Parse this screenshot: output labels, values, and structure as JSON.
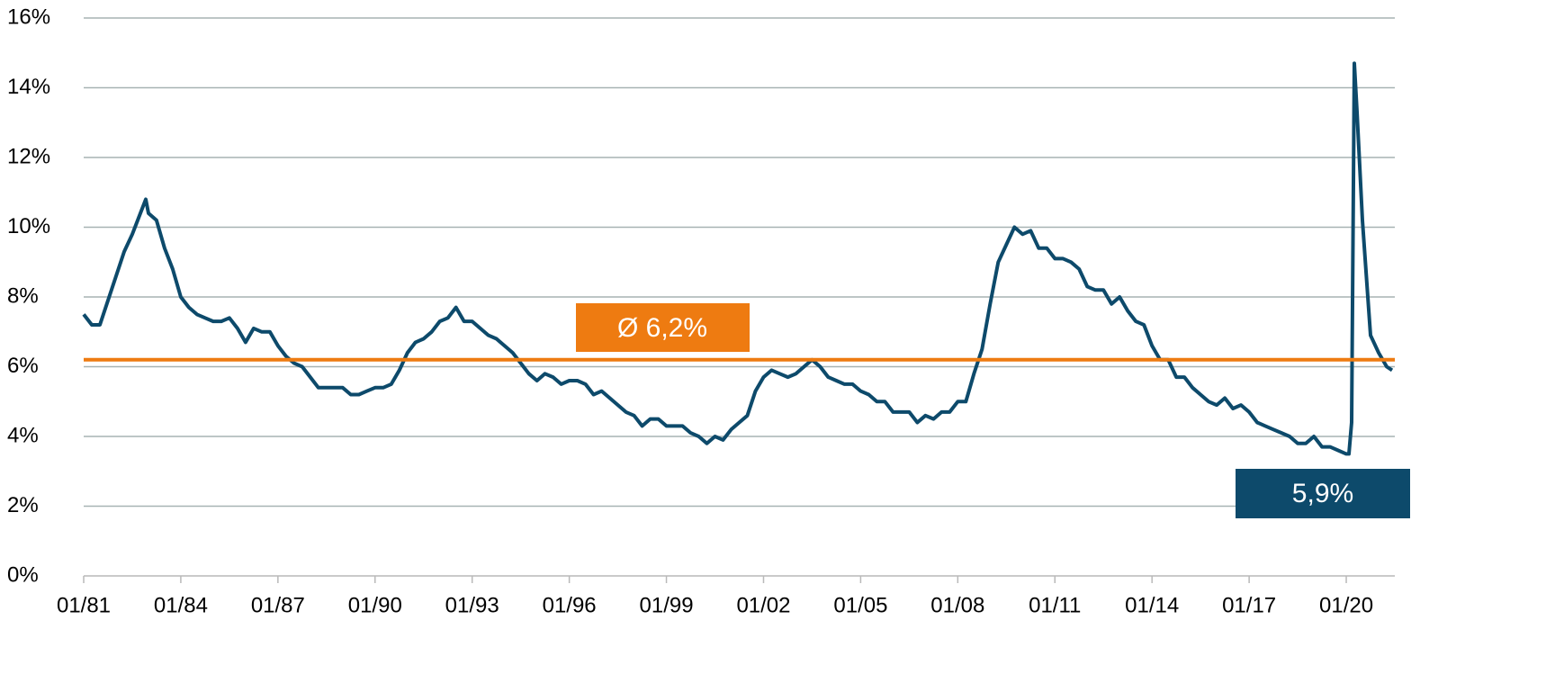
{
  "chart_data": {
    "type": "line",
    "x": [
      "01/81",
      "04/81",
      "07/81",
      "10/81",
      "01/82",
      "04/82",
      "07/82",
      "10/82",
      "12/82",
      "01/83",
      "04/83",
      "07/83",
      "10/83",
      "01/84",
      "04/84",
      "07/84",
      "10/84",
      "01/85",
      "04/85",
      "07/85",
      "10/85",
      "01/86",
      "04/86",
      "07/86",
      "10/86",
      "01/87",
      "04/87",
      "07/87",
      "10/87",
      "01/88",
      "04/88",
      "07/88",
      "10/88",
      "01/89",
      "04/89",
      "07/89",
      "10/89",
      "01/90",
      "04/90",
      "07/90",
      "10/90",
      "01/91",
      "04/91",
      "07/91",
      "10/91",
      "01/92",
      "04/92",
      "07/92",
      "10/92",
      "01/93",
      "04/93",
      "07/93",
      "10/93",
      "01/94",
      "04/94",
      "07/94",
      "10/94",
      "01/95",
      "04/95",
      "07/95",
      "10/95",
      "01/96",
      "04/96",
      "07/96",
      "10/96",
      "01/97",
      "04/97",
      "07/97",
      "10/97",
      "01/98",
      "04/98",
      "07/98",
      "10/98",
      "01/99",
      "04/99",
      "07/99",
      "10/99",
      "01/00",
      "04/00",
      "07/00",
      "10/00",
      "01/01",
      "04/01",
      "07/01",
      "10/01",
      "01/02",
      "04/02",
      "07/02",
      "10/02",
      "01/03",
      "04/03",
      "07/03",
      "10/03",
      "01/04",
      "04/04",
      "07/04",
      "10/04",
      "01/05",
      "04/05",
      "07/05",
      "10/05",
      "01/06",
      "04/06",
      "07/06",
      "10/06",
      "01/07",
      "04/07",
      "07/07",
      "10/07",
      "01/08",
      "04/08",
      "07/08",
      "10/08",
      "01/09",
      "04/09",
      "07/09",
      "10/09",
      "01/10",
      "04/10",
      "07/10",
      "10/10",
      "01/11",
      "04/11",
      "07/11",
      "10/11",
      "01/12",
      "04/12",
      "07/12",
      "10/12",
      "01/13",
      "04/13",
      "07/13",
      "10/13",
      "01/14",
      "04/14",
      "07/14",
      "10/14",
      "01/15",
      "04/15",
      "07/15",
      "10/15",
      "01/16",
      "04/16",
      "07/16",
      "10/16",
      "01/17",
      "04/17",
      "07/17",
      "10/17",
      "01/18",
      "04/18",
      "07/18",
      "10/18",
      "01/19",
      "04/19",
      "07/19",
      "10/19",
      "01/20",
      "02/20",
      "03/20",
      "04/20",
      "05/20",
      "07/20",
      "10/20",
      "01/21",
      "04/21",
      "06/21"
    ],
    "values": [
      7.5,
      7.2,
      7.2,
      7.9,
      8.6,
      9.3,
      9.8,
      10.4,
      10.8,
      10.4,
      10.2,
      9.4,
      8.8,
      8.0,
      7.7,
      7.5,
      7.4,
      7.3,
      7.3,
      7.4,
      7.1,
      6.7,
      7.1,
      7.0,
      7.0,
      6.6,
      6.3,
      6.1,
      6.0,
      5.7,
      5.4,
      5.4,
      5.4,
      5.4,
      5.2,
      5.2,
      5.3,
      5.4,
      5.4,
      5.5,
      5.9,
      6.4,
      6.7,
      6.8,
      7.0,
      7.3,
      7.4,
      7.7,
      7.3,
      7.3,
      7.1,
      6.9,
      6.8,
      6.6,
      6.4,
      6.1,
      5.8,
      5.6,
      5.8,
      5.7,
      5.5,
      5.6,
      5.6,
      5.5,
      5.2,
      5.3,
      5.1,
      4.9,
      4.7,
      4.6,
      4.3,
      4.5,
      4.5,
      4.3,
      4.3,
      4.3,
      4.1,
      4.0,
      3.8,
      4.0,
      3.9,
      4.2,
      4.4,
      4.6,
      5.3,
      5.7,
      5.9,
      5.8,
      5.7,
      5.8,
      6.0,
      6.2,
      6.0,
      5.7,
      5.6,
      5.5,
      5.5,
      5.3,
      5.2,
      5.0,
      5.0,
      4.7,
      4.7,
      4.7,
      4.4,
      4.6,
      4.5,
      4.7,
      4.7,
      5.0,
      5.0,
      5.8,
      6.5,
      7.8,
      9.0,
      9.5,
      10.0,
      9.8,
      9.9,
      9.4,
      9.4,
      9.1,
      9.1,
      9.0,
      8.8,
      8.3,
      8.2,
      8.2,
      7.8,
      8.0,
      7.6,
      7.3,
      7.2,
      6.6,
      6.2,
      6.2,
      5.7,
      5.7,
      5.4,
      5.2,
      5.0,
      4.9,
      5.1,
      4.8,
      4.9,
      4.7,
      4.4,
      4.3,
      4.2,
      4.1,
      4.0,
      3.8,
      3.8,
      4.0,
      3.7,
      3.7,
      3.6,
      3.5,
      3.5,
      4.4,
      14.7,
      13.3,
      10.2,
      6.9,
      6.4,
      6.0,
      5.9
    ],
    "color": "#0d4a6b",
    "xlim": [
      "01/81",
      "07/21"
    ],
    "xticks": [
      "01/81",
      "01/84",
      "01/87",
      "01/90",
      "01/93",
      "01/96",
      "01/99",
      "01/02",
      "01/05",
      "01/08",
      "01/11",
      "01/14",
      "01/17",
      "01/20"
    ],
    "ylim": [
      0,
      16
    ],
    "yticks": [
      {
        "value": 0,
        "label": "0%"
      },
      {
        "value": 2,
        "label": "2%"
      },
      {
        "value": 4,
        "label": "4%"
      },
      {
        "value": 6,
        "label": "6%"
      },
      {
        "value": 8,
        "label": "8%"
      },
      {
        "value": 10,
        "label": "10%"
      },
      {
        "value": 12,
        "label": "12%"
      },
      {
        "value": 14,
        "label": "14%"
      },
      {
        "value": 16,
        "label": "16%"
      }
    ],
    "grid": true,
    "average": {
      "value": 6.2,
      "label": "Ø 6,2%",
      "color": "#ee7b11"
    },
    "last_label": {
      "value": 5.9,
      "label": "5,9%"
    }
  }
}
